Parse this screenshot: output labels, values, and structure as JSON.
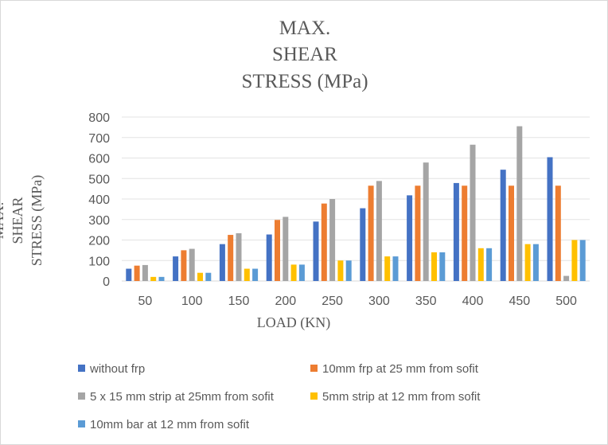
{
  "chart_data": {
    "type": "bar",
    "title_lines": [
      "MAX.",
      "SHEAR",
      "STRESS (MPa)"
    ],
    "ylabel_lines": [
      "MAX.",
      "SHEAR",
      "STRESS (MPa)"
    ],
    "xlabel": "LOAD (KN)",
    "categories": [
      "50",
      "100",
      "150",
      "200",
      "250",
      "300",
      "350",
      "400",
      "450",
      "500"
    ],
    "ylim": [
      0,
      800
    ],
    "yticks": [
      0,
      100,
      200,
      300,
      400,
      500,
      600,
      700,
      800
    ],
    "grid": true,
    "legend_position": "bottom",
    "series": [
      {
        "name": "without frp",
        "color": "#4472c4",
        "values": [
          60,
          120,
          180,
          227,
          290,
          355,
          418,
          478,
          543,
          604
        ]
      },
      {
        "name": "10mm frp at 25 mm from sofit",
        "color": "#ed7d31",
        "values": [
          75,
          150,
          225,
          298,
          378,
          465,
          465,
          465,
          465,
          465
        ]
      },
      {
        "name": "5 x 15 mm strip at 25mm from sofit",
        "color": "#a5a5a5",
        "values": [
          78,
          157,
          233,
          313,
          400,
          488,
          578,
          665,
          755,
          25
        ]
      },
      {
        "name": "5mm strip at 12 mm from sofit",
        "color": "#ffc000",
        "values": [
          20,
          40,
          60,
          80,
          100,
          120,
          140,
          160,
          180,
          200
        ]
      },
      {
        "name": "10mm bar at 12 mm from sofit",
        "color": "#5b9bd5",
        "values": [
          20,
          40,
          60,
          80,
          100,
          120,
          140,
          160,
          180,
          200
        ]
      }
    ]
  }
}
